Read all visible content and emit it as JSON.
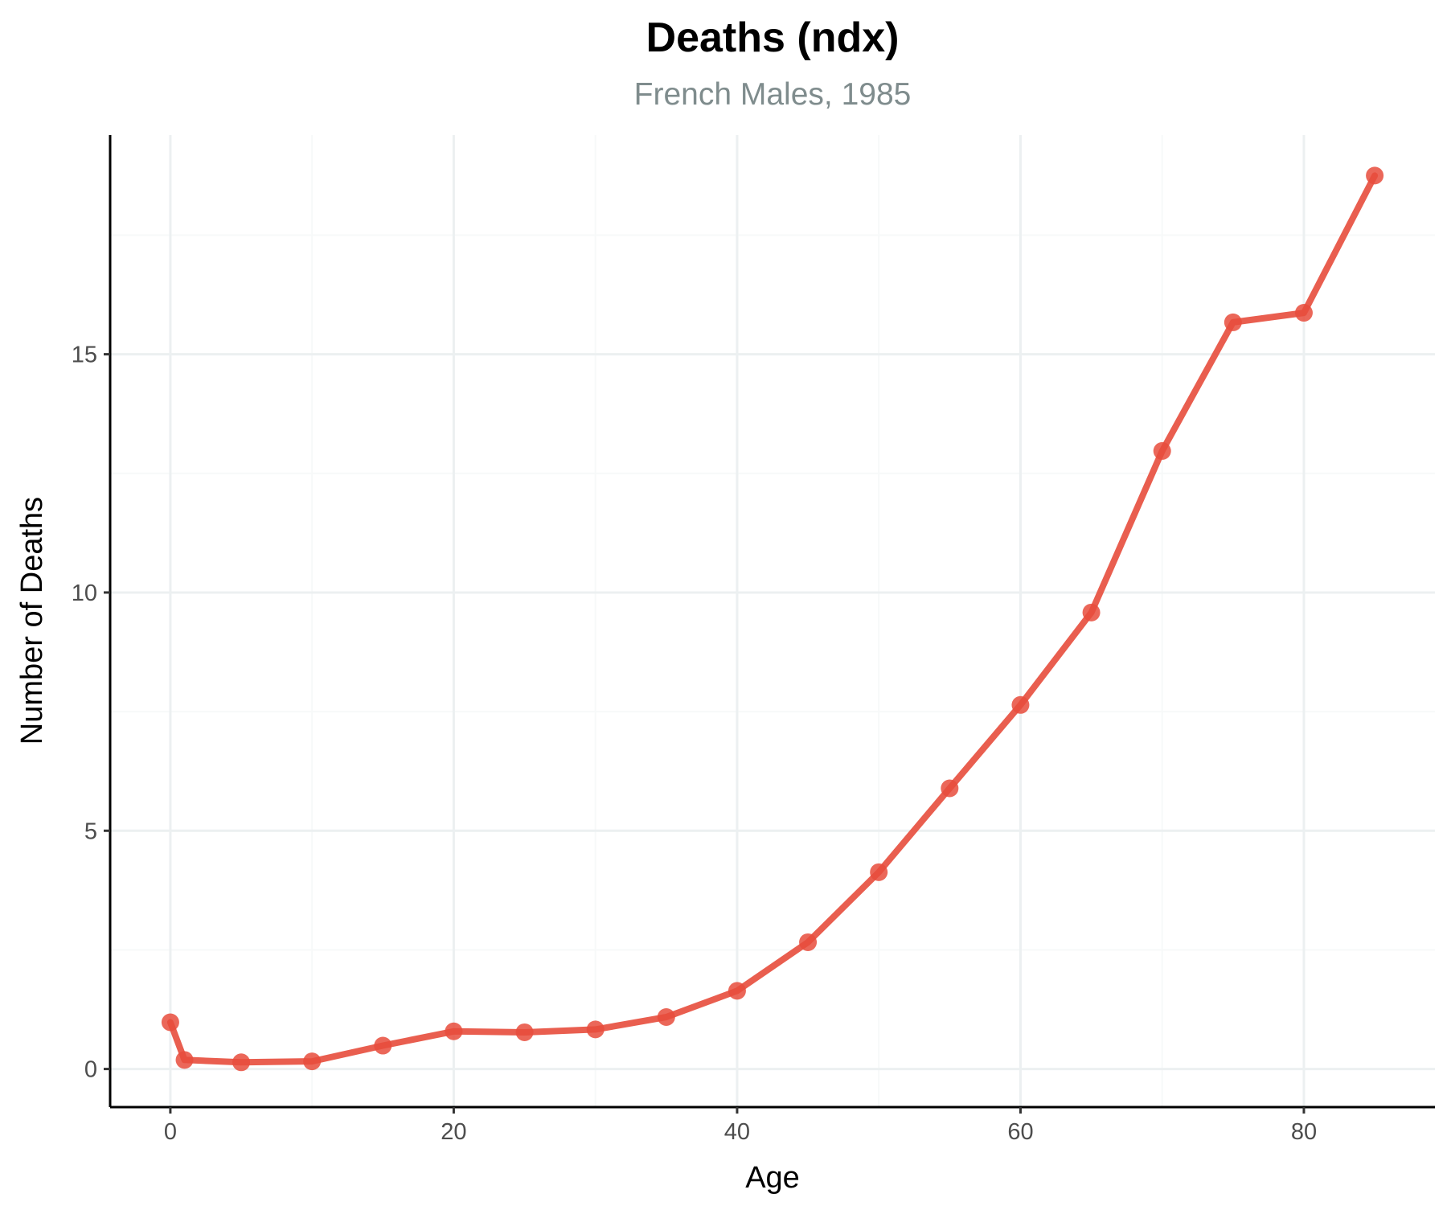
{
  "colors": {
    "series": "#e74c3c",
    "grid": "#ecf0f1",
    "subtitle": "#7f8c8d"
  },
  "chart_data": {
    "type": "line",
    "title": "Deaths (ndx)",
    "subtitle": "French Males, 1985",
    "xlabel": "Age",
    "ylabel": "Number of Deaths",
    "x": [
      0,
      1,
      5,
      10,
      15,
      20,
      25,
      30,
      35,
      40,
      45,
      50,
      55,
      60,
      65,
      70,
      75,
      80,
      85
    ],
    "series": [
      {
        "values": [
          0.98,
          0.19,
          0.14,
          0.16,
          0.49,
          0.79,
          0.77,
          0.83,
          1.09,
          1.64,
          2.66,
          4.13,
          5.89,
          7.64,
          9.58,
          12.97,
          15.67,
          15.87,
          18.75
        ]
      }
    ],
    "xlim": [
      -4.25,
      89.25
    ],
    "ylim": [
      -0.8,
      19.6
    ],
    "xticks": [
      0,
      20,
      40,
      60,
      80
    ],
    "yticks": [
      0,
      5,
      10,
      15
    ],
    "xticks_minor": [
      10,
      30,
      50,
      70
    ],
    "yticks_minor": [
      2.5,
      7.5,
      12.5,
      17.5
    ],
    "grid": true,
    "legend": "none",
    "markers": true
  }
}
